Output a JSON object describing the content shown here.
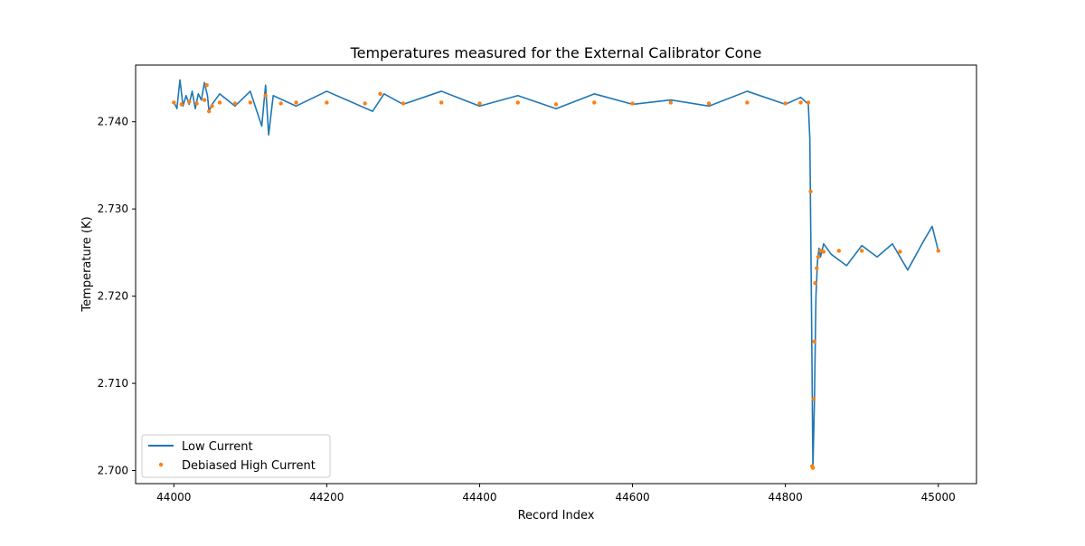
{
  "chart_data": {
    "type": "line",
    "title": "Temperatures measured for the External Calibrator Cone",
    "xlabel": "Record Index",
    "ylabel": "Temperature (K)",
    "xlim": [
      43950,
      45050
    ],
    "ylim": [
      2.6985,
      2.7465
    ],
    "x_ticks": [
      44000,
      44200,
      44400,
      44600,
      44800,
      45000
    ],
    "x_tick_labels": [
      "44000",
      "44200",
      "44400",
      "44600",
      "44800",
      "45000"
    ],
    "y_ticks": [
      2.7,
      2.71,
      2.72,
      2.73,
      2.74
    ],
    "y_tick_labels": [
      "2.700",
      "2.710",
      "2.720",
      "2.730",
      "2.740"
    ],
    "grid": false,
    "legend_position": "lower-left",
    "series": [
      {
        "name": "Low Current",
        "style": "line",
        "color": "#1f77b4",
        "x": [
          44000,
          44004,
          44008,
          44012,
          44016,
          44020,
          44024,
          44028,
          44032,
          44036,
          44040,
          44044,
          44046,
          44050,
          44060,
          44080,
          44100,
          44115,
          44120,
          44124,
          44130,
          44160,
          44200,
          44260,
          44275,
          44300,
          44350,
          44400,
          44450,
          44500,
          44550,
          44600,
          44650,
          44700,
          44750,
          44800,
          44820,
          44830,
          44832,
          44834,
          44836,
          44838,
          44840,
          44842,
          44844,
          44846,
          44850,
          44860,
          44880,
          44900,
          44920,
          44940,
          44960,
          44980,
          44992,
          45000
        ],
        "values": [
          2.7423,
          2.7415,
          2.7448,
          2.7418,
          2.743,
          2.742,
          2.7435,
          2.7415,
          2.7432,
          2.7425,
          2.7445,
          2.743,
          2.7412,
          2.742,
          2.7432,
          2.7418,
          2.7435,
          2.7395,
          2.7442,
          2.7385,
          2.743,
          2.7418,
          2.7435,
          2.7412,
          2.7432,
          2.742,
          2.7435,
          2.7418,
          2.743,
          2.7415,
          2.7432,
          2.742,
          2.7425,
          2.7418,
          2.7435,
          2.742,
          2.7428,
          2.742,
          2.738,
          2.72,
          2.7002,
          2.708,
          2.72,
          2.724,
          2.7255,
          2.7245,
          2.726,
          2.7248,
          2.7235,
          2.7258,
          2.7245,
          2.726,
          2.723,
          2.7262,
          2.728,
          2.7252
        ]
      },
      {
        "name": "Debiased High Current",
        "style": "scatter",
        "color": "#ff7f0e",
        "x": [
          44000,
          44010,
          44020,
          44030,
          44040,
          44043,
          44046,
          44050,
          44060,
          44080,
          44100,
          44120,
          44140,
          44160,
          44200,
          44250,
          44270,
          44300,
          44350,
          44400,
          44450,
          44500,
          44550,
          44600,
          44650,
          44700,
          44750,
          44800,
          44820,
          44830,
          44833,
          44835,
          44836,
          44837,
          44838,
          44839,
          44841,
          44843,
          44846,
          44850,
          44870,
          44900,
          44950,
          45000
        ],
        "values": [
          2.7422,
          2.742,
          2.7423,
          2.7421,
          2.7425,
          2.7442,
          2.7412,
          2.7418,
          2.7422,
          2.7421,
          2.7422,
          2.743,
          2.7421,
          2.7422,
          2.7422,
          2.7421,
          2.7432,
          2.7421,
          2.7422,
          2.7421,
          2.7422,
          2.742,
          2.7422,
          2.7421,
          2.7422,
          2.7421,
          2.7422,
          2.7421,
          2.7422,
          2.7422,
          2.732,
          2.7005,
          2.7003,
          2.7082,
          2.7148,
          2.7215,
          2.7232,
          2.7245,
          2.7252,
          2.7251,
          2.7252,
          2.7252,
          2.7251,
          2.7252
        ]
      }
    ]
  }
}
